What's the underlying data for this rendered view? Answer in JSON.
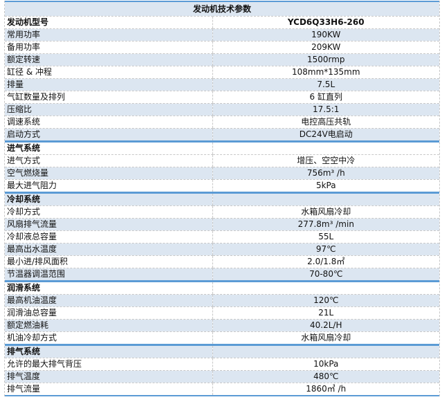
{
  "title": "发动机技术参数",
  "colors": {
    "accent_border": "#5b9bd5",
    "stripe": "#dce6f1"
  },
  "model": {
    "label": "发动机型号",
    "value": "YCD6Q33H6-260",
    "shaded": false
  },
  "sections": [
    {
      "name": "",
      "shaded": false,
      "rows": [
        {
          "label": "常用功率",
          "value": "190KW",
          "shaded": true
        },
        {
          "label": "备用功率",
          "value": "209KW",
          "shaded": false
        },
        {
          "label": "额定转速",
          "value": "1500rmp",
          "shaded": true
        },
        {
          "label": "缸径 & 冲程",
          "value": "108mm*135mm",
          "shaded": false
        },
        {
          "label": "排量",
          "value": "7.5L",
          "shaded": true
        },
        {
          "label": "气缸数量及排列",
          "value": "6 缸直列",
          "shaded": false
        },
        {
          "label": "压缩比",
          "value": "17.5:1",
          "shaded": true
        },
        {
          "label": "调速系统",
          "value": "电控高压共轨",
          "shaded": false
        },
        {
          "label": "启动方式",
          "value": "DC24V电启动",
          "shaded": true
        }
      ]
    },
    {
      "name": "进气系统",
      "shaded": false,
      "rows": [
        {
          "label": "进气方式",
          "value": "增压、空空中冷",
          "shaded": false
        },
        {
          "label": "空气燃烧量",
          "value": "756m³ /h",
          "shaded": true
        },
        {
          "label": "最大进气阻力",
          "value": "5kPa",
          "shaded": false
        }
      ]
    },
    {
      "name": "冷却系统",
      "shaded": true,
      "rows": [
        {
          "label": "冷却方式",
          "value": "水箱风扇冷却",
          "shaded": false
        },
        {
          "label": "风扇排气流量",
          "value": "277.8m³  /min",
          "shaded": true
        },
        {
          "label": "冷却液总容量",
          "value": "55L",
          "shaded": false
        },
        {
          "label": "最高出水温度",
          "value": "97℃",
          "shaded": true
        },
        {
          "label": "最小进/排风面积",
          "value": "2.0/1.8㎡",
          "shaded": false
        },
        {
          "label": "节温器调温范围",
          "value": "70-80℃",
          "shaded": true
        }
      ]
    },
    {
      "name": "润滑系统",
      "shaded": false,
      "rows": [
        {
          "label": "最高机油温度",
          "value": "120℃",
          "shaded": true
        },
        {
          "label": "润滑油总容量",
          "value": "21L",
          "shaded": false
        },
        {
          "label": "额定燃油耗",
          "value": "40.2L/H",
          "shaded": true
        },
        {
          "label": "机油冷却方式",
          "value": "水箱风扇冷却",
          "shaded": false
        }
      ]
    },
    {
      "name": "排气系统",
      "shaded": true,
      "rows": [
        {
          "label": "允许的最大排气背压",
          "value": "10kPa",
          "shaded": false
        },
        {
          "label": "排气温度",
          "value": "480℃",
          "shaded": true
        },
        {
          "label": "排气流量",
          "value": "1860㎥ /h",
          "shaded": false
        }
      ]
    }
  ]
}
